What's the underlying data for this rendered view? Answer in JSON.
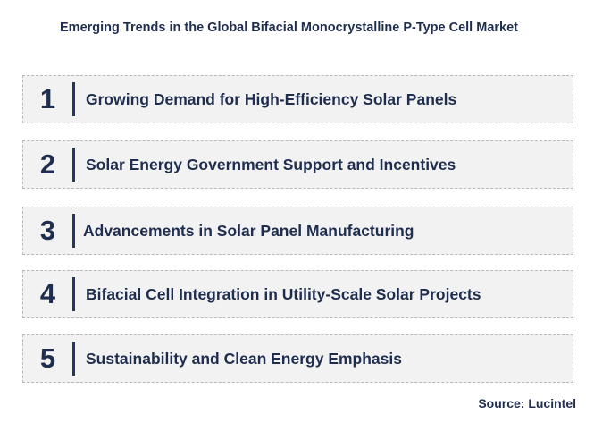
{
  "title": "Emerging Trends in the Global Bifacial Monocrystalline P-Type Cell Market",
  "trends": [
    {
      "number": "1",
      "label": "Growing Demand for High-Efficiency Solar Panels"
    },
    {
      "number": "2",
      "label": "Solar Energy Government Support and Incentives"
    },
    {
      "number": "3",
      "label": "Advancements in Solar Panel Manufacturing"
    },
    {
      "number": "4",
      "label": "Bifacial Cell Integration in Utility-Scale Solar Projects"
    },
    {
      "number": "5",
      "label": "Sustainability and Clean Energy Emphasis"
    }
  ],
  "source": "Source: Lucintel",
  "colors": {
    "text": "#1f2d4e",
    "divider": "#1f3864",
    "box_background": "#f2f2f2",
    "box_border": "#b9b9b9"
  }
}
